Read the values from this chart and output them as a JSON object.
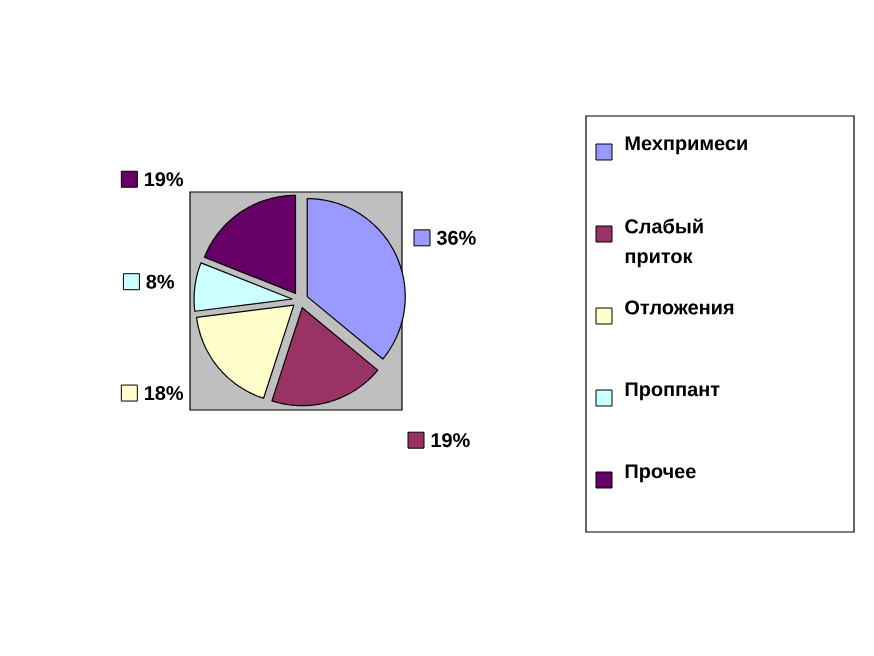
{
  "chart_data": {
    "type": "pie",
    "categories": [
      "Мехпримеси",
      "Слабый приток",
      "Отложения",
      "Проппант",
      "Прочее"
    ],
    "values": [
      36,
      19,
      18,
      8,
      19
    ],
    "colors": [
      "#9999ff",
      "#993366",
      "#ffffcc",
      "#ccffff",
      "#660066"
    ],
    "value_labels": [
      "36%",
      "19%",
      "18%",
      "8%",
      "19%"
    ],
    "legend": "right"
  }
}
